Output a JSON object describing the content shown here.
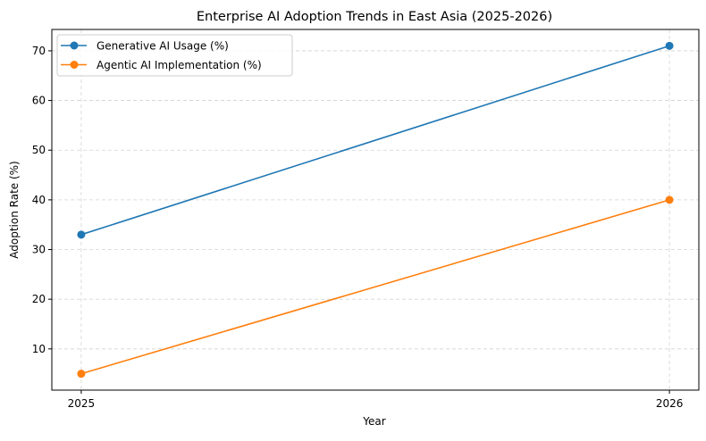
{
  "chart_data": {
    "type": "line",
    "title": "Enterprise AI Adoption Trends in East Asia (2025-2026)",
    "xlabel": "Year",
    "ylabel": "Adoption Rate (%)",
    "x": [
      2025,
      2026
    ],
    "xticks": [
      "2025",
      "2026"
    ],
    "yticks": [
      "10",
      "20",
      "30",
      "40",
      "50",
      "60",
      "70"
    ],
    "xlim": [
      2024.95,
      2026.05
    ],
    "ylim": [
      1.7,
      74.3
    ],
    "grid": true,
    "legend_placement": "upper-left",
    "series": [
      {
        "name": "Generative AI Usage (%)",
        "values": [
          33,
          71
        ],
        "color": "#1f77b4",
        "marker": "circle"
      },
      {
        "name": "Agentic AI Implementation (%)",
        "values": [
          5,
          40
        ],
        "color": "#ff7f0e",
        "marker": "circle"
      }
    ]
  }
}
